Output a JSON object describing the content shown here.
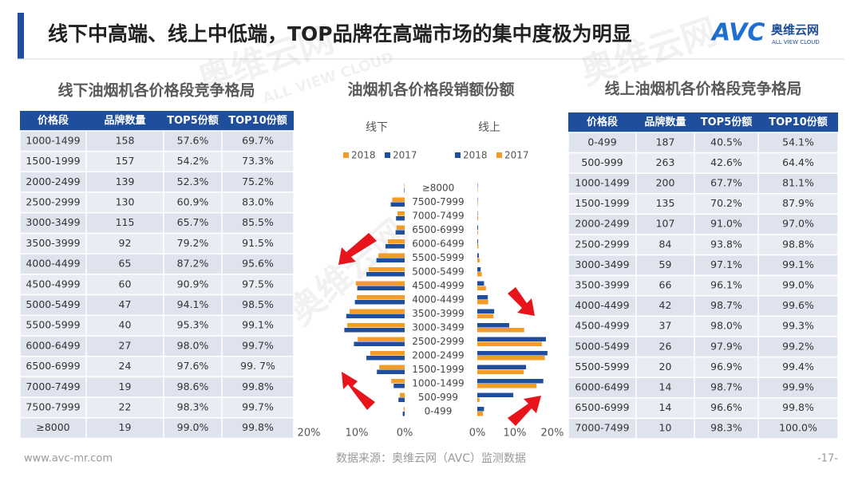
{
  "header": {
    "title": "线下中高端、线上中低端，TOP品牌在高端市场的集中度极为明显",
    "logo": "AVC",
    "logo_cn": "奥维云网",
    "logo_en": "ALL VIEW CLOUD"
  },
  "watermark": {
    "cn": "奥维云网",
    "en": "ALL VIEW CLOUD"
  },
  "left_table": {
    "title": "线下油烟机各价格段竞争格局",
    "header": [
      "价格段",
      "品牌数量",
      "TOP5份额",
      "TOP10份额"
    ],
    "rows": [
      [
        "1000-1499",
        "158",
        "57.6%",
        "69.7%"
      ],
      [
        "1500-1999",
        "157",
        "54.2%",
        "73.3%"
      ],
      [
        "2000-2499",
        "139",
        "52.3%",
        "75.2%"
      ],
      [
        "2500-2999",
        "130",
        "60.9%",
        "83.0%"
      ],
      [
        "3000-3499",
        "115",
        "65.7%",
        "85.5%"
      ],
      [
        "3500-3999",
        "92",
        "79.2%",
        "91.5%"
      ],
      [
        "4000-4499",
        "65",
        "87.2%",
        "95.6%"
      ],
      [
        "4500-4999",
        "60",
        "90.9%",
        "97.5%"
      ],
      [
        "5000-5499",
        "47",
        "94.1%",
        "98.5%"
      ],
      [
        "5500-5999",
        "40",
        "95.3%",
        "99.1%"
      ],
      [
        "6000-6499",
        "27",
        "98.0%",
        "99.7%"
      ],
      [
        "6500-6999",
        "24",
        "97.6%",
        "99. 7%"
      ],
      [
        "7000-7499",
        "19",
        "98.6%",
        "99.8%"
      ],
      [
        "7500-7999",
        "22",
        "98.3%",
        "99.7%"
      ],
      [
        "≥8000",
        "19",
        "99.0%",
        "99.8%"
      ]
    ]
  },
  "right_table": {
    "title": "线上油烟机各价格段竞争格局",
    "header": [
      "价格段",
      "品牌数量",
      "TOP5份额",
      "TOP10份额"
    ],
    "rows": [
      [
        "0-499",
        "187",
        "40.5%",
        "54.1%"
      ],
      [
        "500-999",
        "263",
        "42.6%",
        "64.4%"
      ],
      [
        "1000-1499",
        "200",
        "67.7%",
        "81.1%"
      ],
      [
        "1500-1999",
        "135",
        "70.2%",
        "87.9%"
      ],
      [
        "2000-2499",
        "107",
        "91.0%",
        "97.0%"
      ],
      [
        "2500-2999",
        "84",
        "93.8%",
        "98.8%"
      ],
      [
        "3000-3499",
        "59",
        "97.1%",
        "99.1%"
      ],
      [
        "3500-3999",
        "66",
        "96.1%",
        "99.0%"
      ],
      [
        "4000-4499",
        "42",
        "98.7%",
        "99.6%"
      ],
      [
        "4500-4999",
        "37",
        "98.0%",
        "99.3%"
      ],
      [
        "5000-5499",
        "26",
        "97.9%",
        "99.2%"
      ],
      [
        "5500-5999",
        "20",
        "96.9%",
        "99.4%"
      ],
      [
        "6000-6499",
        "14",
        "98.7%",
        "99.9%"
      ],
      [
        "6500-6999",
        "14",
        "96.6%",
        "99.8%"
      ],
      [
        "7000-7499",
        "10",
        "98.3%",
        "100.0%"
      ]
    ],
    "highlight_cell": [
      14,
      3
    ],
    "highlight_color": "#e0001b"
  },
  "chart_data": {
    "type": "butterfly",
    "title": "油烟机各价格段销额份额",
    "categories": [
      "≥8000",
      "7500-7999",
      "7000-7499",
      "6500-6999",
      "6000-6499",
      "5500-5999",
      "5000-5499",
      "4500-4999",
      "4000-4499",
      "3500-3999",
      "3000-3499",
      "2500-2999",
      "2000-2499",
      "1500-1999",
      "1000-1499",
      "500-999",
      "0-499"
    ],
    "xlim": [
      0,
      20
    ],
    "xticks": [
      {
        "value": 0,
        "label": "0%"
      },
      {
        "value": 10,
        "label": "10%"
      },
      {
        "value": 20,
        "label": "20%"
      }
    ],
    "left": {
      "title": "线下",
      "series": [
        {
          "name": "2018",
          "color": "#f39c26",
          "values": [
            0.1,
            2.6,
            1.5,
            1.7,
            3.5,
            5.5,
            7.5,
            10.2,
            10.0,
            11.5,
            12.0,
            9.8,
            7.2,
            5.3,
            2.8,
            1.0,
            0.2
          ]
        },
        {
          "name": "2017",
          "color": "#1f4e9c",
          "values": [
            0.1,
            2.9,
            1.8,
            1.9,
            4.0,
            5.9,
            8.0,
            9.9,
            10.4,
            12.2,
            12.6,
            10.6,
            8.0,
            5.8,
            2.3,
            1.3,
            0.4
          ]
        }
      ]
    },
    "right": {
      "title": "线上",
      "series": [
        {
          "name": "2018",
          "color": "#1f4e9c",
          "values": [
            0.1,
            0.1,
            0.1,
            0.2,
            0.2,
            0.4,
            0.9,
            1.8,
            2.8,
            4.5,
            8.5,
            18.3,
            18.7,
            13.0,
            17.6,
            9.6,
            1.8
          ]
        },
        {
          "name": "2017",
          "color": "#f39c26",
          "values": [
            0.1,
            0.1,
            0.2,
            0.2,
            0.3,
            0.6,
            1.2,
            2.3,
            2.9,
            4.3,
            12.5,
            17.2,
            18.0,
            12.4,
            15.8,
            0.6,
            1.5
          ]
        }
      ]
    }
  },
  "footer": {
    "website": "www.avc-mr.com",
    "source": "数据来源：奥维云网（AVC）监测数据",
    "page": "-17-"
  }
}
